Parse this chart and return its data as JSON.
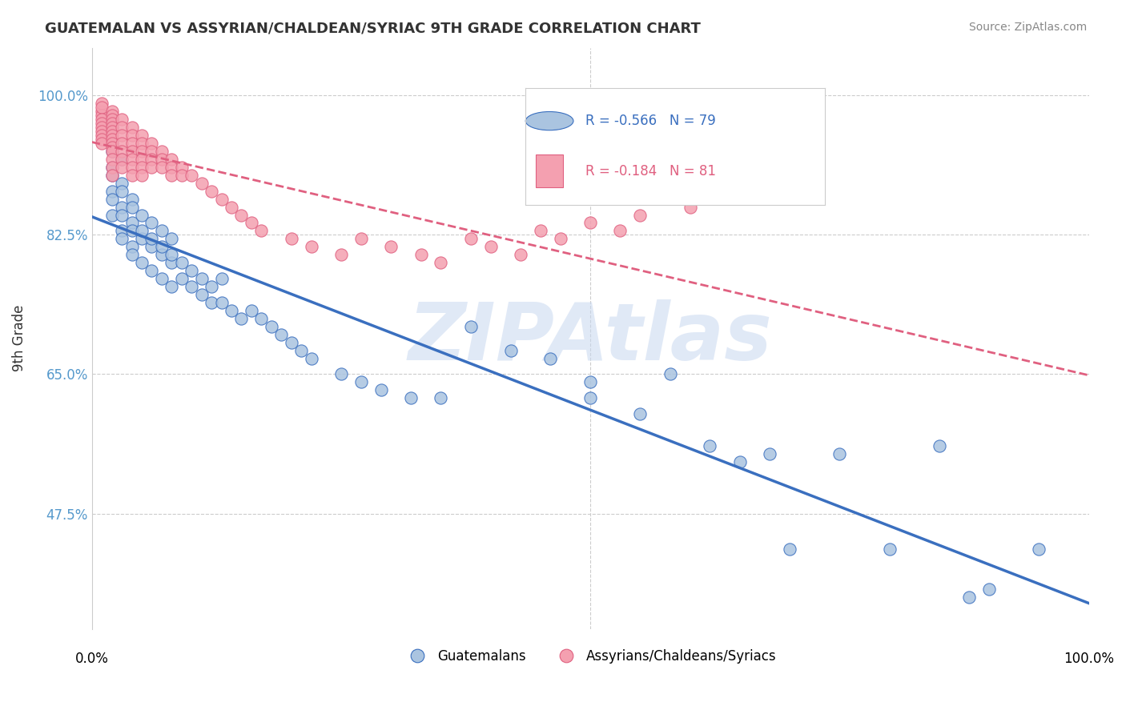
{
  "title": "GUATEMALAN VS ASSYRIAN/CHALDEAN/SYRIAC 9TH GRADE CORRELATION CHART",
  "source": "Source: ZipAtlas.com",
  "ylabel": "9th Grade",
  "xlim": [
    0.0,
    1.0
  ],
  "ylim": [
    0.33,
    1.06
  ],
  "blue_R": -0.566,
  "blue_N": 79,
  "pink_R": -0.184,
  "pink_N": 81,
  "blue_color": "#aac4e0",
  "blue_line_color": "#3a6fbf",
  "pink_color": "#f4a0b0",
  "pink_line_color": "#e06080",
  "watermark": "ZIPAtlas",
  "watermark_color": "#c8d8f0",
  "legend_label_blue": "Guatemalans",
  "legend_label_pink": "Assyrians/Chaldeans/Syriacs",
  "blue_scatter_x": [
    0.02,
    0.02,
    0.02,
    0.02,
    0.02,
    0.02,
    0.02,
    0.02,
    0.02,
    0.03,
    0.03,
    0.03,
    0.03,
    0.03,
    0.03,
    0.03,
    0.04,
    0.04,
    0.04,
    0.04,
    0.04,
    0.04,
    0.05,
    0.05,
    0.05,
    0.05,
    0.06,
    0.06,
    0.06,
    0.06,
    0.07,
    0.07,
    0.07,
    0.07,
    0.08,
    0.08,
    0.08,
    0.08,
    0.09,
    0.09,
    0.1,
    0.1,
    0.11,
    0.11,
    0.12,
    0.12,
    0.13,
    0.13,
    0.14,
    0.15,
    0.16,
    0.17,
    0.18,
    0.19,
    0.2,
    0.21,
    0.22,
    0.25,
    0.27,
    0.29,
    0.32,
    0.35,
    0.38,
    0.42,
    0.46,
    0.5,
    0.5,
    0.55,
    0.58,
    0.62,
    0.65,
    0.68,
    0.7,
    0.75,
    0.8,
    0.85,
    0.88,
    0.9,
    0.95
  ],
  "blue_scatter_y": [
    0.93,
    0.96,
    0.97,
    0.94,
    0.91,
    0.88,
    0.85,
    0.9,
    0.87,
    0.92,
    0.89,
    0.86,
    0.83,
    0.88,
    0.85,
    0.82,
    0.87,
    0.84,
    0.81,
    0.86,
    0.83,
    0.8,
    0.85,
    0.82,
    0.79,
    0.83,
    0.84,
    0.81,
    0.78,
    0.82,
    0.83,
    0.8,
    0.77,
    0.81,
    0.82,
    0.79,
    0.76,
    0.8,
    0.79,
    0.77,
    0.78,
    0.76,
    0.77,
    0.75,
    0.76,
    0.74,
    0.77,
    0.74,
    0.73,
    0.72,
    0.73,
    0.72,
    0.71,
    0.7,
    0.69,
    0.68,
    0.67,
    0.65,
    0.64,
    0.63,
    0.62,
    0.62,
    0.71,
    0.68,
    0.67,
    0.64,
    0.62,
    0.6,
    0.65,
    0.56,
    0.54,
    0.55,
    0.43,
    0.55,
    0.43,
    0.56,
    0.37,
    0.38,
    0.43
  ],
  "pink_scatter_x": [
    0.01,
    0.01,
    0.01,
    0.01,
    0.01,
    0.01,
    0.01,
    0.01,
    0.01,
    0.01,
    0.01,
    0.02,
    0.02,
    0.02,
    0.02,
    0.02,
    0.02,
    0.02,
    0.02,
    0.02,
    0.02,
    0.02,
    0.02,
    0.02,
    0.02,
    0.03,
    0.03,
    0.03,
    0.03,
    0.03,
    0.03,
    0.03,
    0.04,
    0.04,
    0.04,
    0.04,
    0.04,
    0.04,
    0.04,
    0.05,
    0.05,
    0.05,
    0.05,
    0.05,
    0.05,
    0.06,
    0.06,
    0.06,
    0.06,
    0.07,
    0.07,
    0.07,
    0.08,
    0.08,
    0.08,
    0.09,
    0.09,
    0.1,
    0.11,
    0.12,
    0.13,
    0.14,
    0.15,
    0.16,
    0.17,
    0.2,
    0.22,
    0.25,
    0.27,
    0.3,
    0.33,
    0.35,
    0.38,
    0.4,
    0.43,
    0.45,
    0.47,
    0.5,
    0.53,
    0.55,
    0.6
  ],
  "pink_scatter_y": [
    0.98,
    0.99,
    0.975,
    0.985,
    0.97,
    0.965,
    0.96,
    0.955,
    0.95,
    0.945,
    0.94,
    0.98,
    0.975,
    0.97,
    0.965,
    0.96,
    0.955,
    0.95,
    0.945,
    0.94,
    0.935,
    0.93,
    0.92,
    0.91,
    0.9,
    0.97,
    0.96,
    0.95,
    0.94,
    0.93,
    0.92,
    0.91,
    0.96,
    0.95,
    0.94,
    0.93,
    0.92,
    0.91,
    0.9,
    0.95,
    0.94,
    0.93,
    0.92,
    0.91,
    0.9,
    0.94,
    0.93,
    0.92,
    0.91,
    0.93,
    0.92,
    0.91,
    0.92,
    0.91,
    0.9,
    0.91,
    0.9,
    0.9,
    0.89,
    0.88,
    0.87,
    0.86,
    0.85,
    0.84,
    0.83,
    0.82,
    0.81,
    0.8,
    0.82,
    0.81,
    0.8,
    0.79,
    0.82,
    0.81,
    0.8,
    0.83,
    0.82,
    0.84,
    0.83,
    0.85,
    0.86
  ]
}
